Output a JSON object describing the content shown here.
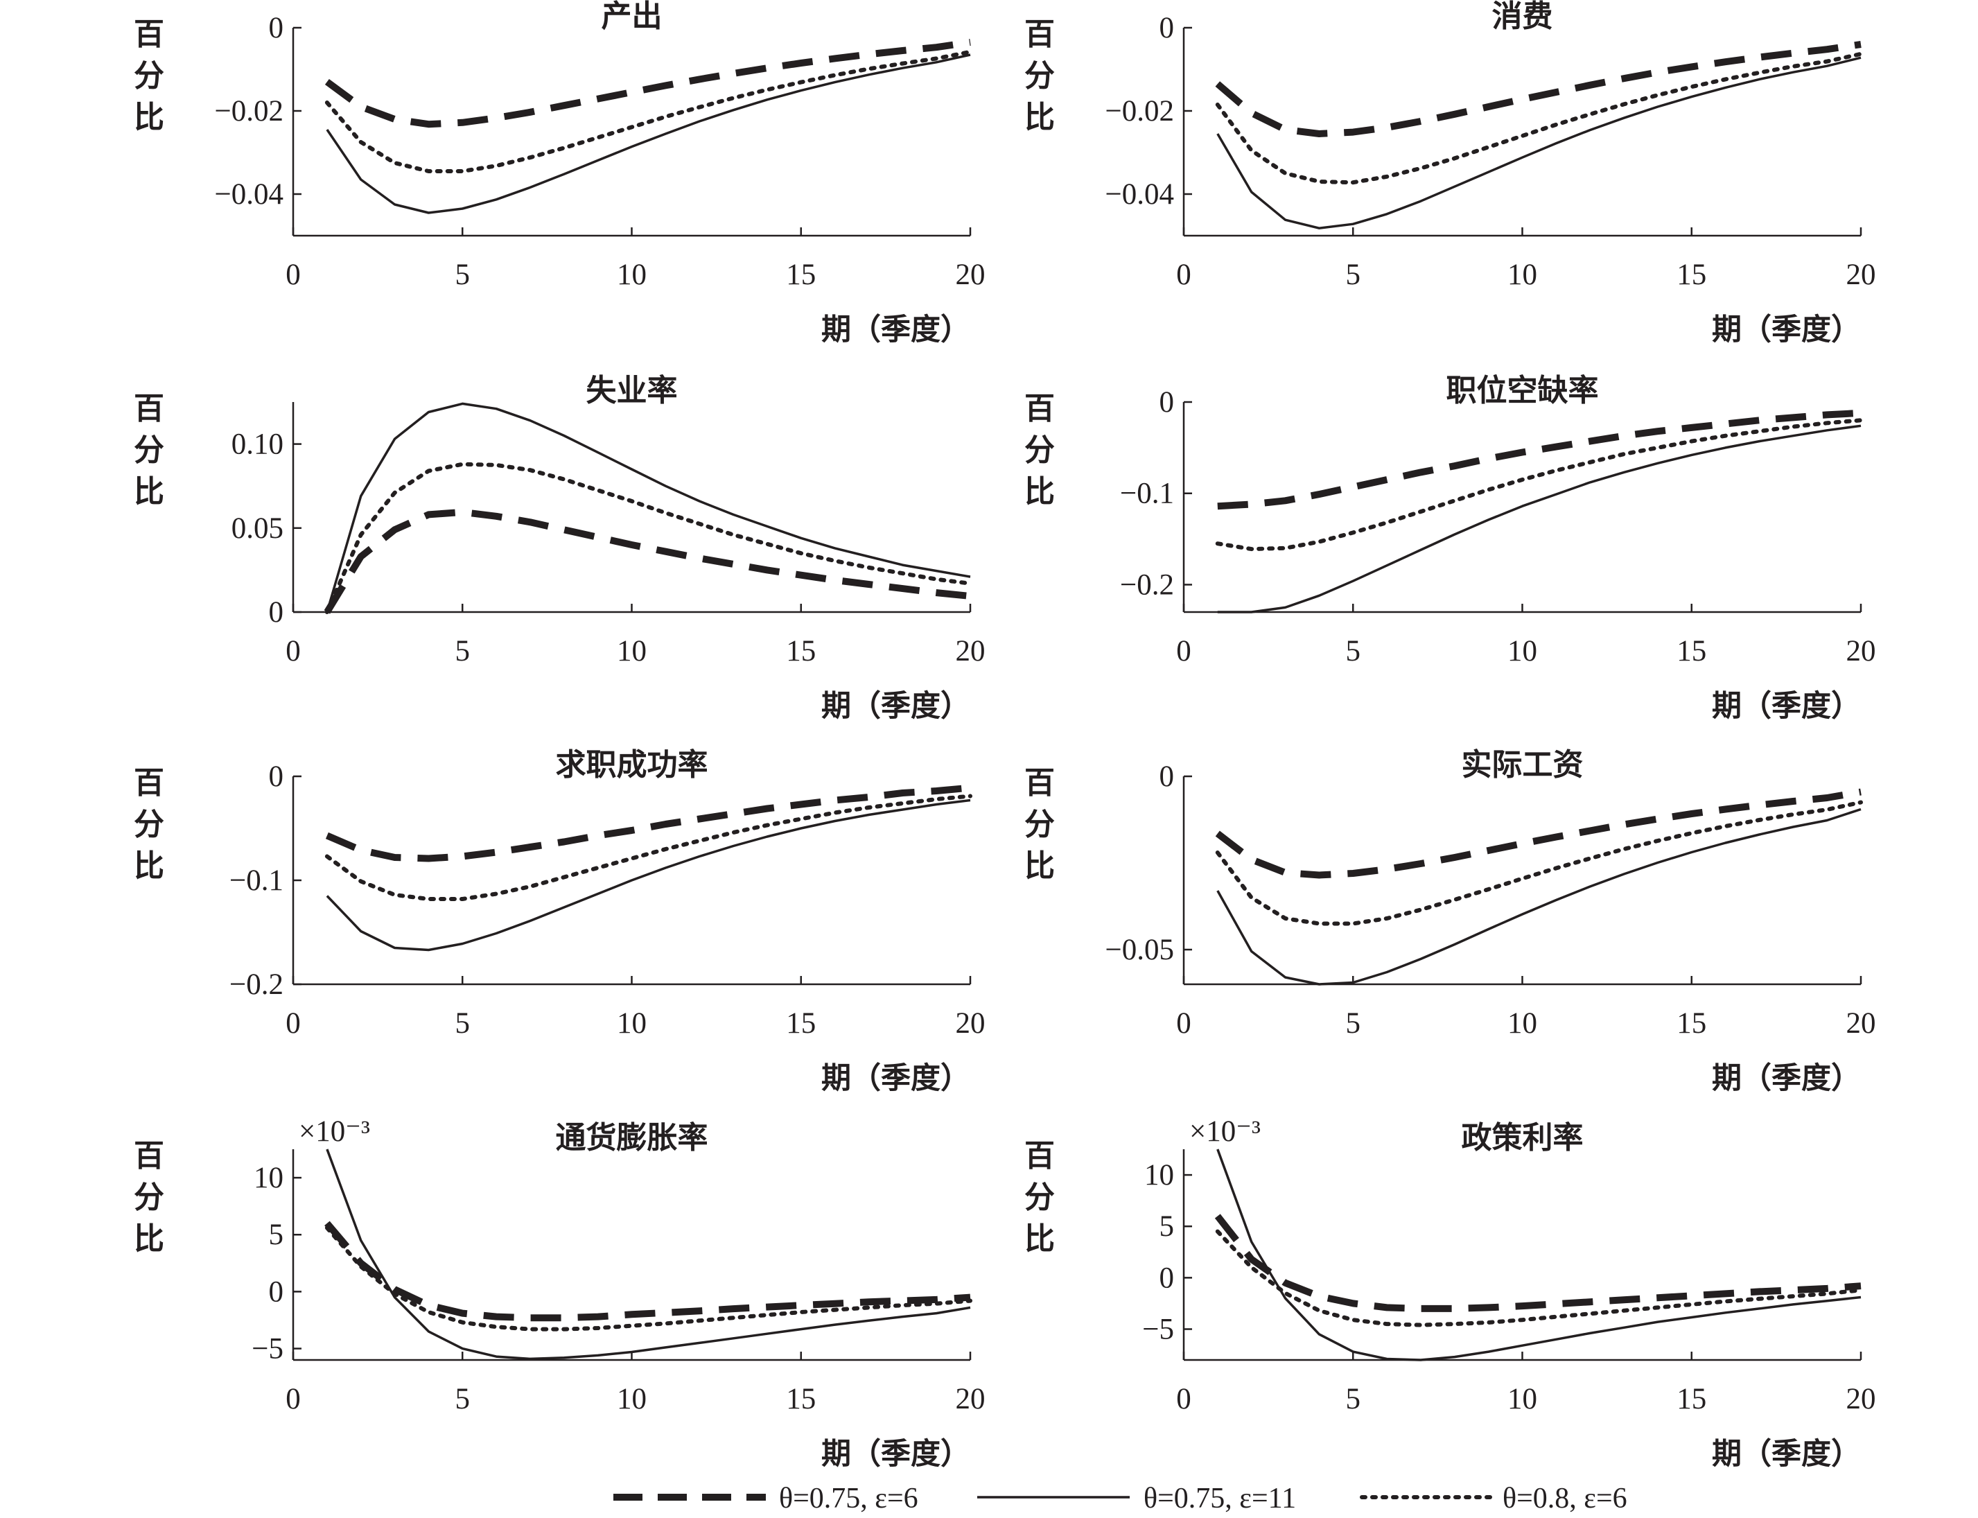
{
  "chart_data": [
    {
      "type": "line",
      "title": "产出",
      "ylabel": "百分比",
      "xlabel": "期（季度）",
      "xlim": [
        0,
        20
      ],
      "ylim": [
        -0.05,
        0
      ],
      "xticks": [
        "0",
        "5",
        "10",
        "15",
        "20"
      ],
      "yticks": [
        0,
        -0.02,
        -0.04
      ],
      "ytick_labels": [
        "0",
        "−0.02",
        "−0.04"
      ],
      "x": [
        1,
        2,
        3,
        4,
        5,
        6,
        7,
        8,
        9,
        10,
        11,
        12,
        13,
        14,
        15,
        16,
        17,
        18,
        19,
        20
      ],
      "series": [
        {
          "values": [
            -0.013,
            -0.019,
            -0.022,
            -0.0232,
            -0.0228,
            -0.0217,
            -0.0203,
            -0.0187,
            -0.0171,
            -0.0155,
            -0.0139,
            -0.0124,
            -0.011,
            -0.0097,
            -0.0085,
            -0.0074,
            -0.0064,
            -0.0055,
            -0.0047,
            -0.0035
          ]
        },
        {
          "values": [
            -0.0245,
            -0.0365,
            -0.0425,
            -0.0445,
            -0.0435,
            -0.0413,
            -0.0384,
            -0.0352,
            -0.0319,
            -0.0286,
            -0.0255,
            -0.0225,
            -0.0198,
            -0.0173,
            -0.0151,
            -0.0131,
            -0.0113,
            -0.0097,
            -0.0083,
            -0.0065
          ]
        },
        {
          "values": [
            -0.018,
            -0.0275,
            -0.0325,
            -0.0345,
            -0.0345,
            -0.0332,
            -0.0312,
            -0.0289,
            -0.0264,
            -0.0239,
            -0.0214,
            -0.0191,
            -0.0169,
            -0.0149,
            -0.0131,
            -0.0114,
            -0.0099,
            -0.0086,
            -0.0074,
            -0.0058
          ]
        }
      ]
    },
    {
      "type": "line",
      "title": "消费",
      "ylabel": "百分比",
      "xlabel": "期（季度）",
      "xlim": [
        0,
        20
      ],
      "ylim": [
        -0.05,
        0
      ],
      "xticks": [
        "0",
        "5",
        "10",
        "15",
        "20"
      ],
      "yticks": [
        0,
        -0.02,
        -0.04
      ],
      "ytick_labels": [
        "0",
        "−0.02",
        "−0.04"
      ],
      "x": [
        1,
        2,
        3,
        4,
        5,
        6,
        7,
        8,
        9,
        10,
        11,
        12,
        13,
        14,
        15,
        16,
        17,
        18,
        19,
        20
      ],
      "series": [
        {
          "values": [
            -0.0135,
            -0.0205,
            -0.0245,
            -0.0255,
            -0.0251,
            -0.024,
            -0.0225,
            -0.0208,
            -0.019,
            -0.0172,
            -0.0155,
            -0.0138,
            -0.0122,
            -0.0107,
            -0.0094,
            -0.0082,
            -0.0071,
            -0.0061,
            -0.0052,
            -0.004
          ]
        },
        {
          "values": [
            -0.0255,
            -0.0395,
            -0.0462,
            -0.0482,
            -0.0472,
            -0.0448,
            -0.0417,
            -0.0382,
            -0.0347,
            -0.0312,
            -0.0278,
            -0.0246,
            -0.0217,
            -0.019,
            -0.0166,
            -0.0144,
            -0.0124,
            -0.0107,
            -0.0092,
            -0.0072
          ]
        },
        {
          "values": [
            -0.0185,
            -0.0295,
            -0.035,
            -0.037,
            -0.0372,
            -0.0358,
            -0.0338,
            -0.0314,
            -0.0287,
            -0.026,
            -0.0233,
            -0.0208,
            -0.0184,
            -0.0162,
            -0.0142,
            -0.0124,
            -0.0108,
            -0.0093,
            -0.0081,
            -0.0063
          ]
        }
      ]
    },
    {
      "type": "line",
      "title": "失业率",
      "ylabel": "百分比",
      "xlabel": "期（季度）",
      "xlim": [
        0,
        20
      ],
      "ylim": [
        0,
        0.125
      ],
      "xticks": [
        "0",
        "5",
        "10",
        "15",
        "20"
      ],
      "yticks": [
        0.1,
        0.05,
        0
      ],
      "ytick_labels": [
        "0.10",
        "0.05",
        "0"
      ],
      "x": [
        1,
        2,
        3,
        4,
        5,
        6,
        7,
        8,
        9,
        10,
        11,
        12,
        13,
        14,
        15,
        16,
        17,
        18,
        19,
        20
      ],
      "series": [
        {
          "values": [
            0,
            0.033,
            0.049,
            0.058,
            0.0595,
            0.057,
            0.0535,
            0.049,
            0.0445,
            0.04,
            0.036,
            0.032,
            0.0285,
            0.025,
            0.022,
            0.019,
            0.0165,
            0.014,
            0.0115,
            0.0095
          ]
        },
        {
          "values": [
            0,
            0.069,
            0.103,
            0.119,
            0.124,
            0.121,
            0.114,
            0.105,
            0.095,
            0.085,
            0.075,
            0.066,
            0.058,
            0.051,
            0.044,
            0.038,
            0.033,
            0.028,
            0.0245,
            0.021
          ]
        },
        {
          "values": [
            0,
            0.046,
            0.071,
            0.084,
            0.088,
            0.0875,
            0.0845,
            0.079,
            0.0725,
            0.066,
            0.059,
            0.0525,
            0.046,
            0.0405,
            0.035,
            0.0305,
            0.0265,
            0.023,
            0.0195,
            0.017
          ]
        }
      ]
    },
    {
      "type": "line",
      "title": "职位空缺率",
      "ylabel": "百分比",
      "xlabel": "期（季度）",
      "xlim": [
        0,
        20
      ],
      "ylim": [
        -0.23,
        0
      ],
      "xticks": [
        "0",
        "5",
        "10",
        "15",
        "20"
      ],
      "yticks": [
        0,
        -0.1,
        -0.2
      ],
      "ytick_labels": [
        "0",
        "−0.1",
        "−0.2"
      ],
      "x": [
        1,
        2,
        3,
        4,
        5,
        6,
        7,
        8,
        9,
        10,
        11,
        12,
        13,
        14,
        15,
        16,
        17,
        18,
        19,
        20
      ],
      "series": [
        {
          "values": [
            -0.114,
            -0.112,
            -0.108,
            -0.101,
            -0.093,
            -0.085,
            -0.077,
            -0.07,
            -0.062,
            -0.055,
            -0.049,
            -0.043,
            -0.037,
            -0.032,
            -0.028,
            -0.024,
            -0.02,
            -0.017,
            -0.014,
            -0.012
          ]
        },
        {
          "values": [
            -0.23,
            -0.23,
            -0.225,
            -0.212,
            -0.196,
            -0.179,
            -0.162,
            -0.145,
            -0.129,
            -0.114,
            -0.101,
            -0.088,
            -0.077,
            -0.067,
            -0.058,
            -0.05,
            -0.043,
            -0.037,
            -0.031,
            -0.026
          ]
        },
        {
          "values": [
            -0.155,
            -0.161,
            -0.16,
            -0.153,
            -0.143,
            -0.132,
            -0.12,
            -0.108,
            -0.096,
            -0.085,
            -0.075,
            -0.066,
            -0.057,
            -0.05,
            -0.043,
            -0.037,
            -0.032,
            -0.027,
            -0.023,
            -0.02
          ]
        }
      ]
    },
    {
      "type": "line",
      "title": "求职成功率",
      "ylabel": "百分比",
      "xlabel": "期（季度）",
      "xlim": [
        0,
        20
      ],
      "ylim": [
        -0.2,
        0
      ],
      "xticks": [
        "0",
        "5",
        "10",
        "15",
        "20"
      ],
      "yticks": [
        0,
        -0.1,
        -0.2
      ],
      "ytick_labels": [
        "0",
        "−0.1",
        "−0.2"
      ],
      "x": [
        1,
        2,
        3,
        4,
        5,
        6,
        7,
        8,
        9,
        10,
        11,
        12,
        13,
        14,
        15,
        16,
        17,
        18,
        19,
        20
      ],
      "series": [
        {
          "values": [
            -0.057,
            -0.071,
            -0.078,
            -0.079,
            -0.077,
            -0.073,
            -0.068,
            -0.063,
            -0.057,
            -0.052,
            -0.046,
            -0.041,
            -0.036,
            -0.031,
            -0.027,
            -0.023,
            -0.02,
            -0.016,
            -0.014,
            -0.011
          ]
        },
        {
          "values": [
            -0.115,
            -0.149,
            -0.165,
            -0.167,
            -0.161,
            -0.151,
            -0.139,
            -0.126,
            -0.113,
            -0.1,
            -0.088,
            -0.077,
            -0.067,
            -0.058,
            -0.05,
            -0.043,
            -0.037,
            -0.032,
            -0.027,
            -0.023
          ]
        },
        {
          "values": [
            -0.077,
            -0.101,
            -0.114,
            -0.118,
            -0.118,
            -0.113,
            -0.106,
            -0.097,
            -0.088,
            -0.079,
            -0.07,
            -0.062,
            -0.054,
            -0.047,
            -0.041,
            -0.035,
            -0.03,
            -0.026,
            -0.022,
            -0.019
          ]
        }
      ]
    },
    {
      "type": "line",
      "title": "实际工资",
      "ylabel": "百分比",
      "xlabel": "期（季度）",
      "xlim": [
        0,
        20
      ],
      "ylim": [
        -0.06,
        0
      ],
      "xticks": [
        "0",
        "5",
        "10",
        "15",
        "20"
      ],
      "yticks": [
        0,
        -0.05
      ],
      "ytick_labels": [
        "0",
        "−0.05"
      ],
      "x": [
        1,
        2,
        3,
        4,
        5,
        6,
        7,
        8,
        9,
        10,
        11,
        12,
        13,
        14,
        15,
        16,
        17,
        18,
        19,
        20
      ],
      "series": [
        {
          "values": [
            -0.0165,
            -0.024,
            -0.0278,
            -0.0285,
            -0.028,
            -0.0268,
            -0.0252,
            -0.0234,
            -0.0214,
            -0.0194,
            -0.0175,
            -0.0157,
            -0.0139,
            -0.0123,
            -0.0108,
            -0.0095,
            -0.0083,
            -0.0072,
            -0.0062,
            -0.0045
          ]
        },
        {
          "values": [
            -0.033,
            -0.0505,
            -0.058,
            -0.0605,
            -0.0595,
            -0.0565,
            -0.0527,
            -0.0485,
            -0.0441,
            -0.0398,
            -0.0357,
            -0.0318,
            -0.0282,
            -0.0249,
            -0.0219,
            -0.0192,
            -0.0168,
            -0.0146,
            -0.0127,
            -0.0095
          ]
        },
        {
          "values": [
            -0.022,
            -0.035,
            -0.041,
            -0.0425,
            -0.0425,
            -0.041,
            -0.0385,
            -0.0356,
            -0.0326,
            -0.0295,
            -0.0265,
            -0.0237,
            -0.021,
            -0.0186,
            -0.0164,
            -0.0144,
            -0.0126,
            -0.011,
            -0.0096,
            -0.0075
          ]
        }
      ]
    },
    {
      "type": "line",
      "title": "通货膨胀率",
      "ylabel": "百分比",
      "xlabel": "期（季度）",
      "multiplier": "×10⁻³",
      "xlim": [
        0,
        20
      ],
      "ylim": [
        -6,
        12.5
      ],
      "xticks": [
        "0",
        "5",
        "10",
        "15",
        "20"
      ],
      "yticks": [
        10,
        5,
        0,
        -5
      ],
      "ytick_labels": [
        "10",
        "5",
        "0",
        "−5"
      ],
      "x": [
        1,
        2,
        3,
        4,
        5,
        6,
        7,
        8,
        9,
        10,
        11,
        12,
        13,
        14,
        15,
        16,
        17,
        18,
        19,
        20
      ],
      "series": [
        {
          "values": [
            6,
            2.5,
            0.2,
            -1.2,
            -1.9,
            -2.2,
            -2.3,
            -2.3,
            -2.2,
            -2.0,
            -1.85,
            -1.7,
            -1.5,
            -1.35,
            -1.2,
            -1.05,
            -0.9,
            -0.8,
            -0.7,
            -0.5
          ]
        },
        {
          "values": [
            12.5,
            4.5,
            -0.5,
            -3.5,
            -5.0,
            -5.7,
            -5.9,
            -5.8,
            -5.6,
            -5.3,
            -4.9,
            -4.5,
            -4.1,
            -3.7,
            -3.3,
            -2.9,
            -2.55,
            -2.2,
            -1.9,
            -1.4
          ]
        },
        {
          "values": [
            5.6,
            2.2,
            -0.2,
            -1.8,
            -2.7,
            -3.1,
            -3.3,
            -3.3,
            -3.2,
            -3.0,
            -2.8,
            -2.55,
            -2.3,
            -2.05,
            -1.8,
            -1.6,
            -1.4,
            -1.2,
            -1.05,
            -0.8
          ]
        }
      ]
    },
    {
      "type": "line",
      "title": "政策利率",
      "ylabel": "百分比",
      "xlabel": "期（季度）",
      "multiplier": "×10⁻³",
      "xlim": [
        0,
        20
      ],
      "ylim": [
        -8,
        12.5
      ],
      "xticks": [
        "0",
        "5",
        "10",
        "15",
        "20"
      ],
      "yticks": [
        10,
        5,
        0,
        -5
      ],
      "ytick_labels": [
        "10",
        "5",
        "0",
        "−5"
      ],
      "x": [
        1,
        2,
        3,
        4,
        5,
        6,
        7,
        8,
        9,
        10,
        11,
        12,
        13,
        14,
        15,
        16,
        17,
        18,
        19,
        20
      ],
      "series": [
        {
          "values": [
            6,
            1.8,
            -0.5,
            -1.8,
            -2.5,
            -2.9,
            -3.0,
            -3.0,
            -2.9,
            -2.75,
            -2.55,
            -2.35,
            -2.15,
            -1.95,
            -1.75,
            -1.55,
            -1.35,
            -1.2,
            -1.05,
            -0.8
          ]
        },
        {
          "values": [
            12.5,
            3.5,
            -2.0,
            -5.5,
            -7.2,
            -7.9,
            -8.0,
            -7.7,
            -7.2,
            -6.6,
            -6.0,
            -5.4,
            -4.85,
            -4.3,
            -3.85,
            -3.4,
            -3.0,
            -2.6,
            -2.25,
            -1.9
          ]
        },
        {
          "values": [
            4.5,
            1.0,
            -1.5,
            -3.2,
            -4.1,
            -4.5,
            -4.6,
            -4.5,
            -4.35,
            -4.1,
            -3.8,
            -3.5,
            -3.2,
            -2.9,
            -2.6,
            -2.3,
            -2.05,
            -1.8,
            -1.55,
            -1.2
          ]
        }
      ]
    }
  ],
  "legend": {
    "items": [
      {
        "style": "dashed",
        "label": "θ=0.75, ε=6"
      },
      {
        "style": "solid",
        "label": "θ=0.75, ε=11"
      },
      {
        "style": "dotted",
        "label": "θ=0.8, ε=6"
      }
    ]
  },
  "colors": {
    "ink": "#231f20",
    "background": "#ffffff"
  }
}
